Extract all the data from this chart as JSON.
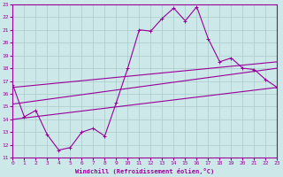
{
  "xlabel": "Windchill (Refroidissement éolien,°C)",
  "background_color": "#cce8e8",
  "grid_color": "#aacccc",
  "line_color": "#990099",
  "x": [
    0,
    1,
    2,
    3,
    4,
    5,
    6,
    7,
    8,
    9,
    10,
    11,
    12,
    13,
    14,
    15,
    16,
    17,
    18,
    19,
    20,
    21,
    22,
    23
  ],
  "y_main": [
    16.7,
    14.2,
    14.7,
    12.8,
    11.6,
    11.8,
    13.0,
    13.3,
    12.7,
    15.3,
    18.0,
    21.0,
    20.9,
    21.9,
    22.7,
    21.7,
    22.8,
    20.3,
    18.5,
    18.8,
    18.0,
    17.9,
    17.1,
    16.5
  ],
  "y_line1_start": 14.0,
  "y_line1_end": 16.5,
  "y_line2_start": 16.5,
  "y_line2_end": 18.5,
  "y_line3_start": 15.2,
  "y_line3_end": 18.0,
  "ylim": [
    11,
    23
  ],
  "xlim": [
    0,
    23
  ],
  "yticks": [
    11,
    12,
    13,
    14,
    15,
    16,
    17,
    18,
    19,
    20,
    21,
    22,
    23
  ],
  "xticks": [
    0,
    1,
    2,
    3,
    4,
    5,
    6,
    7,
    8,
    9,
    10,
    11,
    12,
    13,
    14,
    15,
    16,
    17,
    18,
    19,
    20,
    21,
    22,
    23
  ]
}
